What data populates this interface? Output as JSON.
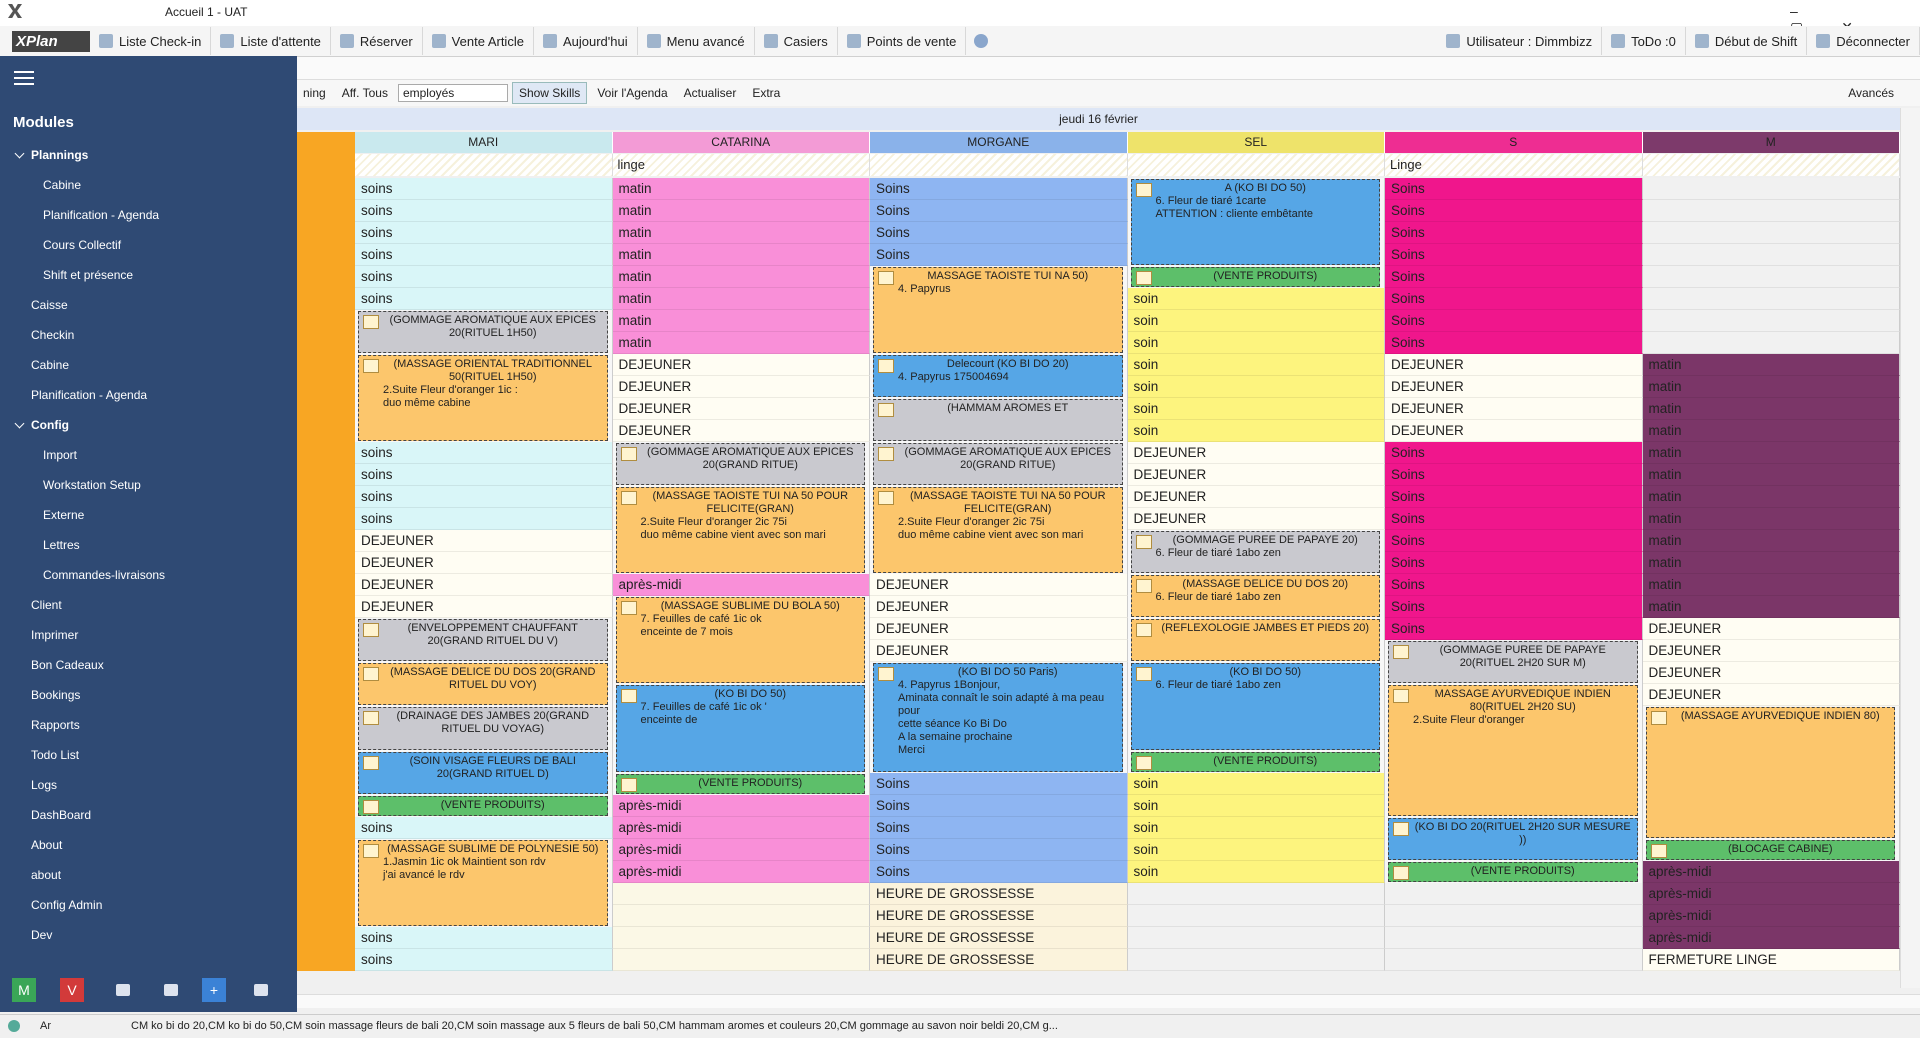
{
  "window": {
    "title": "Accueil 1 - UAT",
    "logo": "XPlan"
  },
  "toolbar": {
    "left": [
      "Liste Check-in",
      "Liste d'attente",
      "Réserver",
      "Vente Article",
      "Aujourd'hui",
      "Menu avancé",
      "Casiers",
      "Points de vente"
    ],
    "right": [
      "Utilisateur : Dimmbizz",
      "ToDo :0",
      "Début de Shift",
      "Déconnecter"
    ]
  },
  "subtoolbar": {
    "left": [
      "ning",
      "Aff. Tous"
    ],
    "select": "employés",
    "items": [
      "Show Skills",
      "Voir l'Agenda",
      "Actualiser",
      "Extra"
    ],
    "right": "Avancés"
  },
  "sidebar": {
    "title": "Modules",
    "items": [
      {
        "label": "Plannings",
        "children": [
          "Cabine",
          "Planification - Agenda",
          "Cours Collectif",
          "Shift et présence"
        ]
      },
      {
        "label": "Caisse"
      },
      {
        "label": "Checkin"
      },
      {
        "label": "Cabine"
      },
      {
        "label": "Planification - Agenda"
      },
      {
        "label": "Config",
        "children": [
          "Import",
          "Workstation Setup",
          "Externe",
          "Lettres",
          "Commandes-livraisons"
        ]
      },
      {
        "label": "Client"
      },
      {
        "label": "Imprimer"
      },
      {
        "label": "Bon Cadeaux"
      },
      {
        "label": "Bookings"
      },
      {
        "label": "Rapports"
      },
      {
        "label": "Todo List"
      },
      {
        "label": "Logs"
      },
      {
        "label": "DashBoard"
      },
      {
        "label": "About"
      },
      {
        "label": "about"
      },
      {
        "label": "Config Admin"
      },
      {
        "label": "Dev"
      }
    ],
    "buttons": [
      "M",
      "V",
      "+"
    ]
  },
  "schedule": {
    "date": "jeudi 16 février",
    "columns": [
      {
        "name": "MARI",
        "color": "#c9e9ee",
        "runs": [
          {
            "text": "soins",
            "span": 6,
            "color": "#d9f6f8"
          },
          {
            "block": true,
            "title": "(GOMMAGE AROMATIQUE AUX EPICES 20(RITUEL 1H50)",
            "span": 2,
            "color": "#c9c9cf"
          },
          {
            "block": true,
            "title": "(MASSAGE ORIENTAL TRADITIONNEL 50(RITUEL 1H50)",
            "lines": [
              "2.Suite Fleur d'oranger 1ic :",
              "duo même cabine"
            ],
            "span": 4,
            "color": "#fcc66c"
          },
          {
            "text": "soins",
            "span": 4,
            "color": "#d9f6f8"
          },
          {
            "text": "DEJEUNER",
            "span": 4,
            "color": "#fffdf3"
          },
          {
            "block": true,
            "title": "(ENVELOPPEMENT CHAUFFANT 20(GRAND RITUEL DU V)",
            "span": 2,
            "color": "#c9c9cf"
          },
          {
            "block": true,
            "title": "(MASSAGE DELICE DU DOS 20(GRAND RITUEL DU VOY)",
            "span": 2,
            "color": "#fcc66c"
          },
          {
            "block": true,
            "title": "(DRAINAGE DES JAMBES 20(GRAND RITUEL DU VOYAG)",
            "span": 2,
            "color": "#c9c9cf"
          },
          {
            "block": true,
            "title": "(SOIN VISAGE FLEURS DE BALI 20(GRAND RITUEL D)",
            "span": 2,
            "color": "#56a6e6"
          },
          {
            "block": true,
            "title": "(VENTE PRODUITS)",
            "span": 1,
            "color": "#5dbf6a"
          },
          {
            "text": "soins",
            "span": 1,
            "color": "#d9f6f8"
          },
          {
            "block": true,
            "title": "(MASSAGE SUBLIME DE POLYNESIE 50)",
            "lines": [
              "1.Jasmin 1ic ok        Maintient son rdv",
              "j'ai avancé le rdv"
            ],
            "span": 4,
            "color": "#fcc66c"
          },
          {
            "text": "soins",
            "span": 2,
            "color": "#d9f6f8"
          }
        ]
      },
      {
        "name": "CATARINA",
        "sub": "linge",
        "color": "#f39bd6",
        "runs": [
          {
            "text": "matin",
            "span": 8,
            "color": "#f98fd8"
          },
          {
            "text": "DEJEUNER",
            "span": 4,
            "color": "#fffdf3"
          },
          {
            "block": true,
            "title": "(GOMMAGE AROMATIQUE AUX EPICES 20(GRAND RITUE)",
            "span": 2,
            "color": "#c9c9cf"
          },
          {
            "block": true,
            "title": "(MASSAGE TAOISTE TUI NA 50 POUR FELICITE(GRAN)",
            "lines": [
              "2.Suite Fleur d'oranger 2ic 75i",
              "duo même cabine vient avec son mari"
            ],
            "span": 4,
            "color": "#fcc66c"
          },
          {
            "text": "après-midi",
            "span": 1,
            "color": "#f98fd8"
          },
          {
            "block": true,
            "title": "(MASSAGE SUBLIME DU BOLA 50)",
            "lines": [
              "7. Feuilles de café 1ic ok",
              "enceinte de 7 mois"
            ],
            "span": 4,
            "color": "#fcc66c"
          },
          {
            "block": true,
            "title": "(KO BI DO 50)",
            "lines": [
              "7. Feuilles de café 1ic ok '",
              "enceinte de"
            ],
            "span": 4,
            "color": "#56a6e6"
          },
          {
            "block": true,
            "title": "(VENTE PRODUITS)",
            "span": 1,
            "color": "#5dbf6a"
          },
          {
            "text": "après-midi",
            "span": 4,
            "color": "#f98fd8"
          },
          {
            "span": 4,
            "color": "#fbf8e6"
          }
        ]
      },
      {
        "name": "MORGANE",
        "color": "#8ab2ea",
        "runs": [
          {
            "text": "Soins",
            "span": 4,
            "color": "#8eb5f2"
          },
          {
            "block": true,
            "title": "MASSAGE TAOISTE TUI NA 50)",
            "lines": [
              "4. Papyrus"
            ],
            "span": 4,
            "color": "#fcc66c"
          },
          {
            "block": true,
            "title": "Delecourt (KO BI DO 20)",
            "lines": [
              "4. Papyrus 175004694"
            ],
            "span": 2,
            "color": "#56a6e6"
          },
          {
            "block": true,
            "title": "(HAMMAM AROMES ET",
            "span": 2,
            "color": "#c9c9cf"
          },
          {
            "block": true,
            "title": "(GOMMAGE AROMATIQUE AUX EPICES 20(GRAND RITUE)",
            "span": 2,
            "color": "#c9c9cf"
          },
          {
            "block": true,
            "title": "(MASSAGE TAOISTE TUI NA 50 POUR FELICITE(GRAN)",
            "lines": [
              "2.Suite Fleur d'oranger 2ic 75i",
              "duo même cabine vient avec son mari"
            ],
            "span": 4,
            "color": "#fcc66c"
          },
          {
            "text": "DEJEUNER",
            "span": 4,
            "color": "#fffdf3"
          },
          {
            "block": true,
            "title": "(KO BI DO 50 Paris)",
            "lines": [
              "4. Papyrus 1Bonjour,",
              "Aminata connaît le soin adapté à ma peau pour",
              "cette séance Ko Bi Do",
              "A la semaine prochaine",
              "Merci"
            ],
            "span": 5,
            "color": "#56a6e6"
          },
          {
            "text": "Soins",
            "span": 5,
            "color": "#8eb5f2"
          },
          {
            "text": "HEURE DE GROSSESSE",
            "span": 4,
            "color": "#fbf3dc"
          }
        ]
      },
      {
        "name": "SEL",
        "color": "#eee36a",
        "runs": [
          {
            "block": true,
            "title": "A        (KO BI DO 50)",
            "lines": [
              "6. Fleur de tiaré 1carte",
              "ATTENTION : cliente embêtante"
            ],
            "span": 4,
            "color": "#56a6e6"
          },
          {
            "block": true,
            "title": "(VENTE PRODUITS)",
            "span": 1,
            "color": "#5dbf6a"
          },
          {
            "text": "soin",
            "span": 7,
            "color": "#fdf47e"
          },
          {
            "text": "DEJEUNER",
            "span": 4,
            "color": "#fffdf3"
          },
          {
            "block": true,
            "title": "(GOMMAGE PUREE DE PAPAYE 20)",
            "lines": [
              "6. Fleur de tiaré 1abo zen"
            ],
            "span": 2,
            "color": "#c9c9cf"
          },
          {
            "block": true,
            "title": "(MASSAGE DELICE DU DOS 20)",
            "lines": [
              "6. Fleur de tiaré 1abo zen"
            ],
            "span": 2,
            "color": "#fcc66c"
          },
          {
            "block": true,
            "title": "(REFLEXOLOGIE JAMBES ET PIEDS 20)",
            "span": 2,
            "color": "#fcc66c"
          },
          {
            "block": true,
            "title": "(KO BI DO 50)",
            "lines": [
              "6. Fleur de tiaré 1abo zen"
            ],
            "span": 4,
            "color": "#56a6e6"
          },
          {
            "block": true,
            "title": "(VENTE PRODUITS)",
            "span": 1,
            "color": "#5dbf6a"
          },
          {
            "text": "soin",
            "span": 5,
            "color": "#fdf47e"
          },
          {
            "span": 4,
            "color": "#f1f1f1"
          }
        ]
      },
      {
        "name": "S",
        "sub": "Linge",
        "color": "#ee2d92",
        "runs": [
          {
            "text": "Soins",
            "span": 8,
            "color": "#f0168c"
          },
          {
            "text": "DEJEUNER",
            "span": 4,
            "color": "#fffdf3"
          },
          {
            "text": "Soins",
            "span": 9,
            "color": "#f0168c"
          },
          {
            "block": true,
            "title": "(GOMMAGE PUREE DE PAPAYE 20(RITUEL 2H20 SUR M)",
            "span": 2,
            "color": "#c9c9cf"
          },
          {
            "block": true,
            "title": "MASSAGE AYURVEDIQUE INDIEN 80(RITUEL 2H20 SU)",
            "lines": [
              "2.Suite Fleur d'oranger"
            ],
            "span": 6,
            "color": "#fcc66c"
          },
          {
            "block": true,
            "title": "(KO BI DO 20(RITUEL 2H20 SUR MESURE ))",
            "span": 2,
            "color": "#56a6e6"
          },
          {
            "block": true,
            "title": "(VENTE PRODUITS)",
            "span": 1,
            "color": "#5dbf6a"
          },
          {
            "span": 4,
            "color": "#f1f1f1"
          }
        ]
      },
      {
        "name": "M",
        "color": "#7d3a6b",
        "runs": [
          {
            "span": 8,
            "color": "#f1f1f1"
          },
          {
            "text": "matin",
            "span": 12,
            "color": "#7b3668"
          },
          {
            "text": "DEJEUNER",
            "span": 4,
            "color": "#fffdf3"
          },
          {
            "block": true,
            "title": "(MASSAGE AYURVEDIQUE INDIEN 80)",
            "span": 6,
            "color": "#fcc66c"
          },
          {
            "block": true,
            "title": "(BLOCAGE CABINE)",
            "span": 1,
            "color": "#5dbf6a"
          },
          {
            "text": "après-midi",
            "span": 4,
            "color": "#7b3668"
          },
          {
            "text": "FERMETURE LINGE",
            "span": 1,
            "color": "#fffdf3"
          }
        ]
      }
    ]
  },
  "status": {
    "user": "Ar",
    "text": "CM ko bi do 20,CM ko bi do 50,CM soin massage fleurs de bali 20,CM soin massage aux 5 fleurs de bali 50,CM hammam aromes et couleurs 20,CM gommage au savon noir beldi 20,CM g..."
  }
}
